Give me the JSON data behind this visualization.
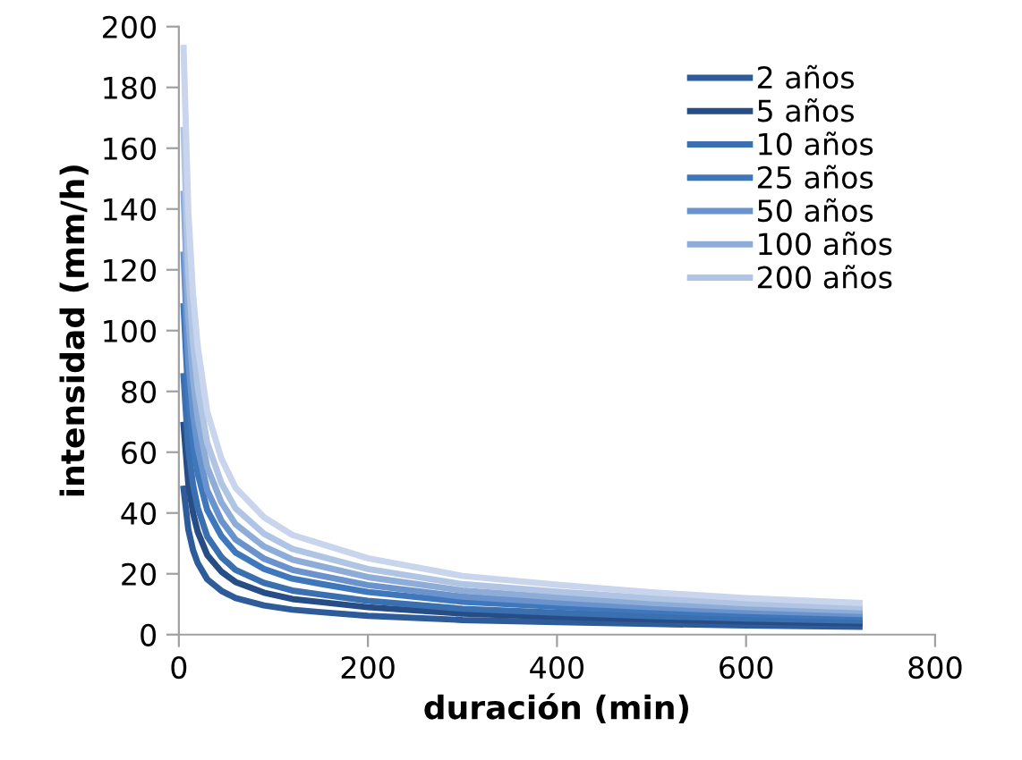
{
  "chart_data": {
    "type": "line",
    "xlabel": "duración (min)",
    "ylabel": "intensidad (mm/h)",
    "x": [
      5,
      10,
      15,
      20,
      30,
      45,
      60,
      90,
      120,
      150,
      200,
      300,
      400,
      500,
      600,
      720
    ],
    "xlim": [
      0,
      800
    ],
    "xticks": [
      0,
      200,
      400,
      600,
      800
    ],
    "ylim": [
      0,
      200
    ],
    "yticks": [
      0,
      20,
      40,
      60,
      80,
      100,
      120,
      140,
      160,
      180,
      200
    ],
    "grid": false,
    "legend": "top right",
    "marker": "none",
    "line_style": "solid",
    "series": [
      {
        "name": "2 años",
        "color": "#2e5c9a",
        "values": [
          48,
          34.6,
          27.8,
          23.5,
          18.2,
          14.4,
          12,
          9.6,
          8.2,
          7.4,
          6.2,
          4.8,
          4.1,
          3.5,
          3,
          2.6
        ]
      },
      {
        "name": "5 años",
        "color": "#264d85",
        "values": [
          69,
          49.7,
          40,
          33.8,
          26.2,
          20.7,
          17.3,
          13.8,
          11.7,
          10.7,
          9,
          6.9,
          5.9,
          5,
          4.3,
          3.7
        ]
      },
      {
        "name": "10 años",
        "color": "#3a6fb0",
        "values": [
          85,
          61.2,
          49.3,
          41.7,
          32.3,
          25.5,
          21.3,
          17,
          14.5,
          13.2,
          11.1,
          8.5,
          7.2,
          6.1,
          5.3,
          4.6
        ]
      },
      {
        "name": "25 años",
        "color": "#3f77bd",
        "values": [
          108,
          77.8,
          62.6,
          52.9,
          41,
          32.4,
          27,
          21.6,
          18.4,
          16.7,
          14,
          10.8,
          9.2,
          7.8,
          6.7,
          5.8
        ]
      },
      {
        "name": "50 años",
        "color": "#6a92cc",
        "values": [
          125,
          90,
          72.5,
          61.3,
          47.5,
          37.5,
          31.3,
          25,
          21.3,
          19.4,
          16.3,
          12.5,
          10.6,
          9,
          7.8,
          6.8
        ]
      },
      {
        "name": "100 años",
        "color": "#8eacd8",
        "values": [
          145,
          104.4,
          84.1,
          71,
          55.1,
          43.5,
          36.3,
          29,
          24.7,
          22.5,
          18.9,
          14.5,
          12.3,
          10.4,
          9,
          7.8
        ]
      },
      {
        "name": "200 años",
        "color": "#b0c4e4",
        "values": [
          166,
          119.5,
          96.3,
          81.3,
          63.1,
          49.8,
          41.5,
          33.2,
          28.2,
          25.7,
          21.6,
          16.6,
          14.1,
          12,
          10.3,
          9
        ]
      },
      {
        "color": "#c8d5ec",
        "values": [
          193,
          139,
          111.9,
          94.6,
          73.3,
          57.9,
          48.3,
          38.6,
          32.8,
          29.9,
          25.1,
          19.3,
          16.4,
          13.9,
          12,
          10.4
        ]
      }
    ]
  }
}
